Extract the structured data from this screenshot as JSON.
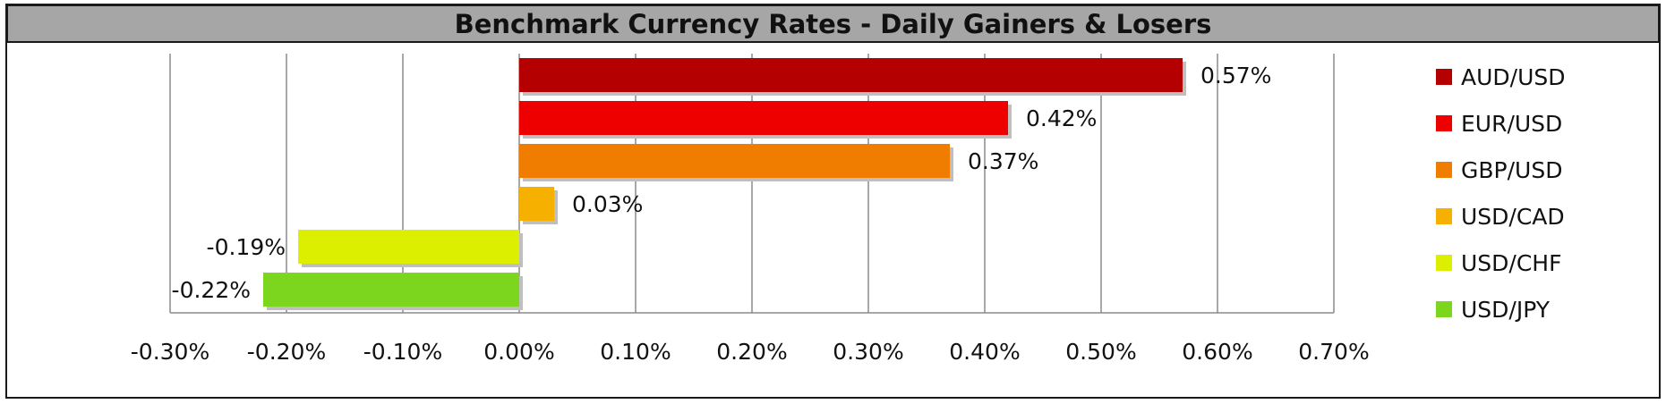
{
  "chart_data": {
    "type": "bar",
    "orientation": "horizontal",
    "title": "Benchmark Currency Rates - Daily Gainers & Losers",
    "categories": [
      "AUD/USD",
      "EUR/USD",
      "GBP/USD",
      "USD/CAD",
      "USD/CHF",
      "USD/JPY"
    ],
    "values": [
      0.57,
      0.42,
      0.37,
      0.03,
      -0.19,
      -0.22
    ],
    "data_labels": [
      "0.57%",
      "0.42%",
      "0.37%",
      "0.03%",
      "-0.19%",
      "-0.22%"
    ],
    "colors": [
      "#b40000",
      "#ee0000",
      "#f07c00",
      "#f5b000",
      "#dcef00",
      "#7dd61e"
    ],
    "xlim": [
      -0.3,
      0.7
    ],
    "xticks": [
      -0.3,
      -0.2,
      -0.1,
      0.0,
      0.1,
      0.2,
      0.3,
      0.4,
      0.5,
      0.6,
      0.7
    ],
    "xtick_labels": [
      "-0.30%",
      "-0.20%",
      "-0.10%",
      "0.00%",
      "0.10%",
      "0.20%",
      "0.30%",
      "0.40%",
      "0.50%",
      "0.60%",
      "0.70%"
    ],
    "grid": "vertical",
    "legend_position": "right"
  }
}
